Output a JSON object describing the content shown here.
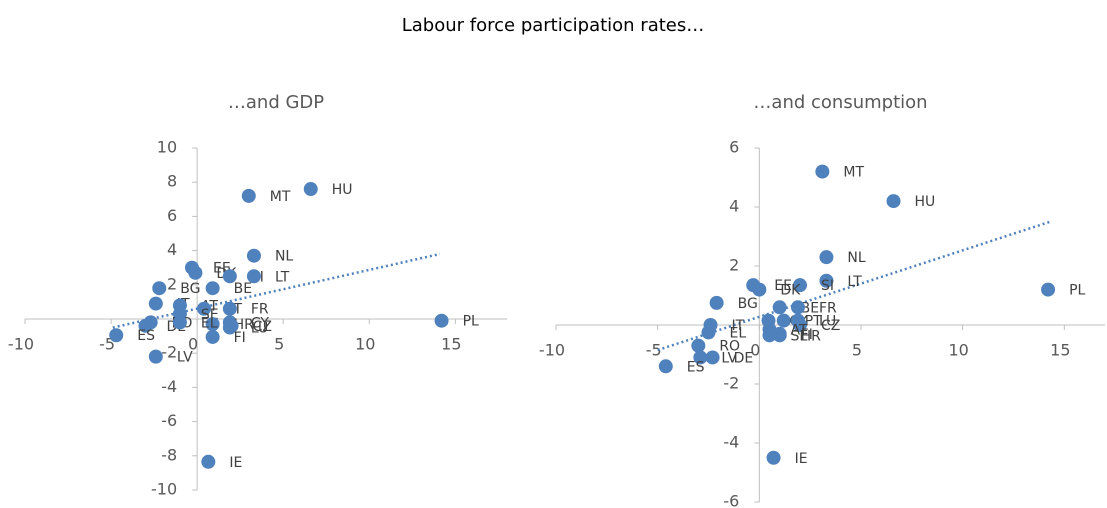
{
  "title": "Labour force participation rates…",
  "chart_data": [
    {
      "type": "scatter",
      "title": "…and GDP",
      "color": "#4f81bd",
      "labels": [
        "HU",
        "MT",
        "NL",
        "EE",
        "DK",
        "SI",
        "LT",
        "BG",
        "BE",
        "IT",
        "AT",
        "PT",
        "FR",
        "SE",
        "CY",
        "HR",
        "CZ",
        "LU",
        "RO",
        "DE",
        "EL",
        "ES",
        "LV",
        "FI",
        "IE",
        "PL"
      ],
      "x": [
        6.6,
        3.0,
        3.3,
        -0.3,
        -0.1,
        1.9,
        3.3,
        -2.2,
        0.9,
        -2.4,
        -1.0,
        0.4,
        1.9,
        -1.0,
        1.9,
        0.9,
        2.0,
        1.9,
        -2.7,
        -3.0,
        -1.0,
        -4.7,
        -2.4,
        0.9,
        0.65,
        14.2
      ],
      "values": [
        7.6,
        7.2,
        3.7,
        3.0,
        2.7,
        2.5,
        2.5,
        1.8,
        1.8,
        0.9,
        0.8,
        0.6,
        0.6,
        0.3,
        -0.2,
        -0.3,
        -0.4,
        -0.5,
        -0.2,
        -0.4,
        -0.2,
        -0.95,
        -2.2,
        -1.05,
        -8.35,
        -0.1
      ],
      "trendline": {
        "x": [
          -4.9,
          14.1
        ],
        "values": [
          -0.5,
          3.8
        ]
      },
      "xlim": [
        -10,
        18
      ],
      "ylim": [
        -10,
        10
      ],
      "xticks": [
        -10,
        -5,
        0,
        5,
        10,
        15
      ],
      "yticks": [
        10,
        8,
        6,
        4,
        2,
        -2,
        -4,
        -6,
        -8,
        -10
      ]
    },
    {
      "type": "scatter",
      "title": "…and consumption",
      "color": "#4f81bd",
      "labels": [
        "MT",
        "HU",
        "NL",
        "LT",
        "SI",
        "EE",
        "DK",
        "PL",
        "BG",
        "BE",
        "FR",
        "PT",
        "CY",
        "LU",
        "CZ",
        "HR",
        "AT",
        "SE",
        "FI",
        "IT",
        "EL",
        "RO",
        "DE",
        "LV",
        "ES",
        "IE"
      ],
      "x": [
        3.1,
        6.6,
        3.3,
        3.3,
        2.0,
        -0.3,
        0.0,
        14.2,
        -2.1,
        1.0,
        1.9,
        1.2,
        0.45,
        1.9,
        2.0,
        1.0,
        0.5,
        0.5,
        1.0,
        -2.4,
        -2.5,
        -3.0,
        -2.3,
        -2.9,
        -4.6,
        0.7
      ],
      "values": [
        5.2,
        4.2,
        2.3,
        1.5,
        1.35,
        1.35,
        1.2,
        1.2,
        0.75,
        0.6,
        0.6,
        0.15,
        0.15,
        0.15,
        0.0,
        -0.35,
        -0.15,
        -0.35,
        -0.3,
        0.0,
        -0.25,
        -0.7,
        -1.1,
        -1.1,
        -1.4,
        -4.5
      ],
      "trendline": {
        "x": [
          -5,
          14.3
        ],
        "values": [
          -0.85,
          3.5
        ]
      },
      "xlim": [
        -10,
        17
      ],
      "ylim": [
        -6,
        6
      ],
      "xticks": [
        -10,
        -5,
        0,
        5,
        10,
        15
      ],
      "yticks": [
        6,
        4,
        2,
        -2,
        -4,
        -6
      ]
    }
  ]
}
